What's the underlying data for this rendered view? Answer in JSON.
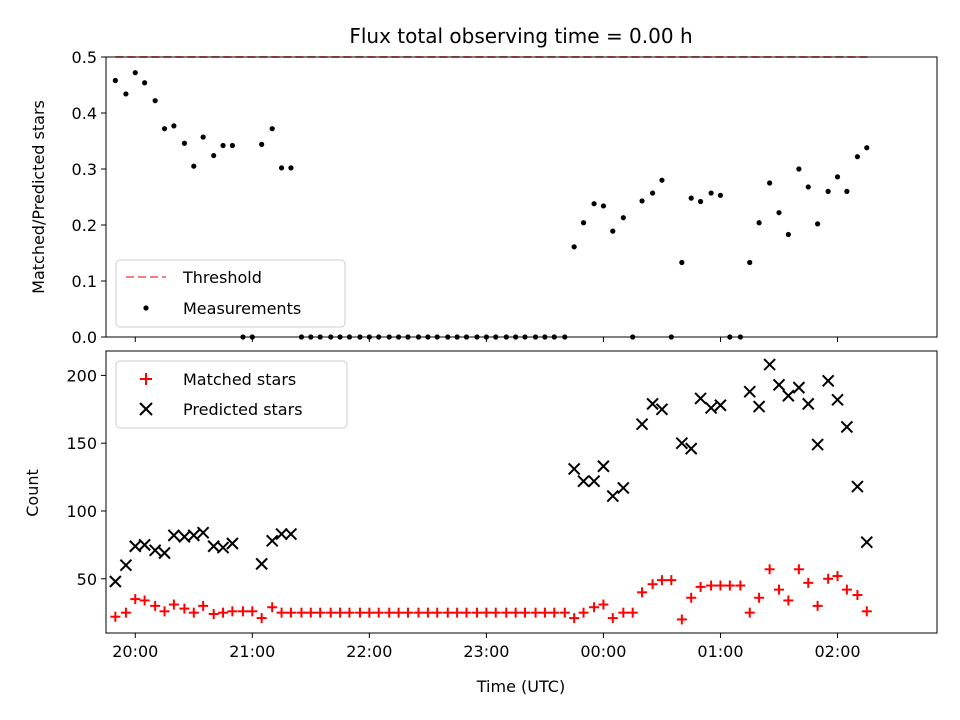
{
  "chart_data": [
    {
      "type": "scatter",
      "title": "Flux total observing time = 0.00 h",
      "xlabel": "",
      "ylabel": "Matched/Predicted stars",
      "xlim": [
        -0.25,
        6.85
      ],
      "ylim": [
        0,
        0.5
      ],
      "x_tick_labels": [
        "20:00",
        "21:00",
        "22:00",
        "23:00",
        "00:00",
        "01:00",
        "02:00"
      ],
      "x_tick_values": [
        0,
        1,
        2,
        3,
        4,
        5,
        6
      ],
      "show_x_tick_labels": false,
      "y_ticks": [
        0.0,
        0.1,
        0.2,
        0.3,
        0.4,
        0.5
      ],
      "legend_position": "lower-left",
      "colors": {
        "threshold": "#f87c7c",
        "measurements": "#000000"
      },
      "series": [
        {
          "name": "Threshold",
          "kind": "dashed-line",
          "points": [
            {
              "x": -0.17,
              "y": 0.5
            },
            {
              "x": 6.27,
              "y": 0.5
            }
          ]
        },
        {
          "name": "Measurements",
          "kind": "dots",
          "points": [
            {
              "x": -0.17,
              "y": 0.458
            },
            {
              "x": -0.08,
              "y": 0.434
            },
            {
              "x": 0.0,
              "y": 0.472
            },
            {
              "x": 0.08,
              "y": 0.454
            },
            {
              "x": 0.17,
              "y": 0.422
            },
            {
              "x": 0.25,
              "y": 0.372
            },
            {
              "x": 0.33,
              "y": 0.377
            },
            {
              "x": 0.42,
              "y": 0.346
            },
            {
              "x": 0.5,
              "y": 0.305
            },
            {
              "x": 0.58,
              "y": 0.357
            },
            {
              "x": 0.67,
              "y": 0.324
            },
            {
              "x": 0.75,
              "y": 0.342
            },
            {
              "x": 0.83,
              "y": 0.342
            },
            {
              "x": 0.92,
              "y": 0.0
            },
            {
              "x": 1.0,
              "y": 0.0
            },
            {
              "x": 1.08,
              "y": 0.344
            },
            {
              "x": 1.17,
              "y": 0.372
            },
            {
              "x": 1.25,
              "y": 0.302
            },
            {
              "x": 1.33,
              "y": 0.302
            },
            {
              "x": 1.42,
              "y": 0.0
            },
            {
              "x": 1.5,
              "y": 0.0
            },
            {
              "x": 1.58,
              "y": 0.0
            },
            {
              "x": 1.67,
              "y": 0.0
            },
            {
              "x": 1.75,
              "y": 0.0
            },
            {
              "x": 1.83,
              "y": 0.0
            },
            {
              "x": 1.92,
              "y": 0.0
            },
            {
              "x": 2.0,
              "y": 0.0
            },
            {
              "x": 2.08,
              "y": 0.0
            },
            {
              "x": 2.17,
              "y": 0.0
            },
            {
              "x": 2.25,
              "y": 0.0
            },
            {
              "x": 2.33,
              "y": 0.0
            },
            {
              "x": 2.42,
              "y": 0.0
            },
            {
              "x": 2.5,
              "y": 0.0
            },
            {
              "x": 2.58,
              "y": 0.0
            },
            {
              "x": 2.67,
              "y": 0.0
            },
            {
              "x": 2.75,
              "y": 0.0
            },
            {
              "x": 2.83,
              "y": 0.0
            },
            {
              "x": 2.92,
              "y": 0.0
            },
            {
              "x": 3.0,
              "y": 0.0
            },
            {
              "x": 3.08,
              "y": 0.0
            },
            {
              "x": 3.17,
              "y": 0.0
            },
            {
              "x": 3.25,
              "y": 0.0
            },
            {
              "x": 3.33,
              "y": 0.0
            },
            {
              "x": 3.42,
              "y": 0.0
            },
            {
              "x": 3.5,
              "y": 0.0
            },
            {
              "x": 3.58,
              "y": 0.0
            },
            {
              "x": 3.67,
              "y": 0.0
            },
            {
              "x": 3.75,
              "y": 0.161
            },
            {
              "x": 3.83,
              "y": 0.204
            },
            {
              "x": 3.92,
              "y": 0.238
            },
            {
              "x": 4.0,
              "y": 0.234
            },
            {
              "x": 4.08,
              "y": 0.189
            },
            {
              "x": 4.17,
              "y": 0.213
            },
            {
              "x": 4.25,
              "y": 0.0
            },
            {
              "x": 4.33,
              "y": 0.243
            },
            {
              "x": 4.42,
              "y": 0.257
            },
            {
              "x": 4.5,
              "y": 0.28
            },
            {
              "x": 4.58,
              "y": 0.0
            },
            {
              "x": 4.67,
              "y": 0.133
            },
            {
              "x": 4.75,
              "y": 0.248
            },
            {
              "x": 4.83,
              "y": 0.242
            },
            {
              "x": 4.92,
              "y": 0.257
            },
            {
              "x": 5.0,
              "y": 0.253
            },
            {
              "x": 5.08,
              "y": 0.0
            },
            {
              "x": 5.17,
              "y": 0.0
            },
            {
              "x": 5.25,
              "y": 0.133
            },
            {
              "x": 5.33,
              "y": 0.204
            },
            {
              "x": 5.42,
              "y": 0.275
            },
            {
              "x": 5.5,
              "y": 0.222
            },
            {
              "x": 5.58,
              "y": 0.183
            },
            {
              "x": 5.67,
              "y": 0.3
            },
            {
              "x": 5.75,
              "y": 0.268
            },
            {
              "x": 5.83,
              "y": 0.202
            },
            {
              "x": 5.92,
              "y": 0.26
            },
            {
              "x": 6.0,
              "y": 0.286
            },
            {
              "x": 6.08,
              "y": 0.26
            },
            {
              "x": 6.17,
              "y": 0.322
            },
            {
              "x": 6.25,
              "y": 0.338
            }
          ]
        }
      ]
    },
    {
      "type": "scatter",
      "title": "",
      "xlabel": "Time (UTC)",
      "ylabel": "Count",
      "xlim": [
        -0.25,
        6.85
      ],
      "ylim": [
        10,
        218
      ],
      "x_tick_labels": [
        "20:00",
        "21:00",
        "22:00",
        "23:00",
        "00:00",
        "01:00",
        "02:00"
      ],
      "x_tick_values": [
        0,
        1,
        2,
        3,
        4,
        5,
        6
      ],
      "show_x_tick_labels": true,
      "y_ticks": [
        50,
        100,
        150,
        200
      ],
      "legend_position": "upper-left",
      "colors": {
        "matched": "#ff0000",
        "predicted": "#000000"
      },
      "series": [
        {
          "name": "Matched stars",
          "kind": "plus",
          "points": [
            {
              "x": -0.17,
              "y": 22
            },
            {
              "x": -0.08,
              "y": 25
            },
            {
              "x": 0.0,
              "y": 35
            },
            {
              "x": 0.08,
              "y": 34
            },
            {
              "x": 0.17,
              "y": 30
            },
            {
              "x": 0.25,
              "y": 26
            },
            {
              "x": 0.33,
              "y": 31
            },
            {
              "x": 0.42,
              "y": 28
            },
            {
              "x": 0.5,
              "y": 25
            },
            {
              "x": 0.58,
              "y": 30
            },
            {
              "x": 0.67,
              "y": 24
            },
            {
              "x": 0.75,
              "y": 25
            },
            {
              "x": 0.83,
              "y": 26
            },
            {
              "x": 0.92,
              "y": 26
            },
            {
              "x": 1.0,
              "y": 26
            },
            {
              "x": 1.08,
              "y": 21
            },
            {
              "x": 1.17,
              "y": 29
            },
            {
              "x": 1.25,
              "y": 25
            },
            {
              "x": 1.33,
              "y": 25
            },
            {
              "x": 1.42,
              "y": 25
            },
            {
              "x": 1.5,
              "y": 25
            },
            {
              "x": 1.58,
              "y": 25
            },
            {
              "x": 1.67,
              "y": 25
            },
            {
              "x": 1.75,
              "y": 25
            },
            {
              "x": 1.83,
              "y": 25
            },
            {
              "x": 1.92,
              "y": 25
            },
            {
              "x": 2.0,
              "y": 25
            },
            {
              "x": 2.08,
              "y": 25
            },
            {
              "x": 2.17,
              "y": 25
            },
            {
              "x": 2.25,
              "y": 25
            },
            {
              "x": 2.33,
              "y": 25
            },
            {
              "x": 2.42,
              "y": 25
            },
            {
              "x": 2.5,
              "y": 25
            },
            {
              "x": 2.58,
              "y": 25
            },
            {
              "x": 2.67,
              "y": 25
            },
            {
              "x": 2.75,
              "y": 25
            },
            {
              "x": 2.83,
              "y": 25
            },
            {
              "x": 2.92,
              "y": 25
            },
            {
              "x": 3.0,
              "y": 25
            },
            {
              "x": 3.08,
              "y": 25
            },
            {
              "x": 3.17,
              "y": 25
            },
            {
              "x": 3.25,
              "y": 25
            },
            {
              "x": 3.33,
              "y": 25
            },
            {
              "x": 3.42,
              "y": 25
            },
            {
              "x": 3.5,
              "y": 25
            },
            {
              "x": 3.58,
              "y": 25
            },
            {
              "x": 3.67,
              "y": 25
            },
            {
              "x": 3.75,
              "y": 21
            },
            {
              "x": 3.83,
              "y": 25
            },
            {
              "x": 3.92,
              "y": 29
            },
            {
              "x": 4.0,
              "y": 31
            },
            {
              "x": 4.08,
              "y": 21
            },
            {
              "x": 4.17,
              "y": 25
            },
            {
              "x": 4.25,
              "y": 25
            },
            {
              "x": 4.33,
              "y": 40
            },
            {
              "x": 4.42,
              "y": 46
            },
            {
              "x": 4.5,
              "y": 49
            },
            {
              "x": 4.58,
              "y": 49
            },
            {
              "x": 4.67,
              "y": 20
            },
            {
              "x": 4.75,
              "y": 36
            },
            {
              "x": 4.83,
              "y": 44
            },
            {
              "x": 4.92,
              "y": 45
            },
            {
              "x": 5.0,
              "y": 45
            },
            {
              "x": 5.08,
              "y": 45
            },
            {
              "x": 5.17,
              "y": 45
            },
            {
              "x": 5.25,
              "y": 25
            },
            {
              "x": 5.33,
              "y": 36
            },
            {
              "x": 5.42,
              "y": 57
            },
            {
              "x": 5.5,
              "y": 42
            },
            {
              "x": 5.58,
              "y": 34
            },
            {
              "x": 5.67,
              "y": 57
            },
            {
              "x": 5.75,
              "y": 47
            },
            {
              "x": 5.83,
              "y": 30
            },
            {
              "x": 5.92,
              "y": 50
            },
            {
              "x": 6.0,
              "y": 52
            },
            {
              "x": 6.08,
              "y": 42
            },
            {
              "x": 6.17,
              "y": 38
            },
            {
              "x": 6.25,
              "y": 26
            }
          ]
        },
        {
          "name": "Predicted stars",
          "kind": "x",
          "points": [
            {
              "x": -0.17,
              "y": 48
            },
            {
              "x": -0.08,
              "y": 60
            },
            {
              "x": 0.0,
              "y": 74
            },
            {
              "x": 0.08,
              "y": 75
            },
            {
              "x": 0.17,
              "y": 71
            },
            {
              "x": 0.25,
              "y": 69
            },
            {
              "x": 0.33,
              "y": 82
            },
            {
              "x": 0.42,
              "y": 81
            },
            {
              "x": 0.5,
              "y": 82
            },
            {
              "x": 0.58,
              "y": 84
            },
            {
              "x": 0.67,
              "y": 74
            },
            {
              "x": 0.75,
              "y": 73
            },
            {
              "x": 0.83,
              "y": 76
            },
            {
              "x": 1.08,
              "y": 61
            },
            {
              "x": 1.17,
              "y": 78
            },
            {
              "x": 1.25,
              "y": 83
            },
            {
              "x": 1.33,
              "y": 83
            },
            {
              "x": 3.75,
              "y": 131
            },
            {
              "x": 3.83,
              "y": 122
            },
            {
              "x": 3.92,
              "y": 122
            },
            {
              "x": 4.0,
              "y": 133
            },
            {
              "x": 4.08,
              "y": 111
            },
            {
              "x": 4.17,
              "y": 117
            },
            {
              "x": 4.33,
              "y": 164
            },
            {
              "x": 4.42,
              "y": 179
            },
            {
              "x": 4.5,
              "y": 175
            },
            {
              "x": 4.67,
              "y": 150
            },
            {
              "x": 4.75,
              "y": 146
            },
            {
              "x": 4.83,
              "y": 183
            },
            {
              "x": 4.92,
              "y": 176
            },
            {
              "x": 5.0,
              "y": 178
            },
            {
              "x": 5.25,
              "y": 188
            },
            {
              "x": 5.33,
              "y": 177
            },
            {
              "x": 5.42,
              "y": 208
            },
            {
              "x": 5.5,
              "y": 193
            },
            {
              "x": 5.58,
              "y": 185
            },
            {
              "x": 5.67,
              "y": 191
            },
            {
              "x": 5.75,
              "y": 179
            },
            {
              "x": 5.83,
              "y": 149
            },
            {
              "x": 5.92,
              "y": 196
            },
            {
              "x": 6.0,
              "y": 182
            },
            {
              "x": 6.08,
              "y": 162
            },
            {
              "x": 6.17,
              "y": 118
            },
            {
              "x": 6.25,
              "y": 77
            }
          ]
        }
      ]
    }
  ]
}
